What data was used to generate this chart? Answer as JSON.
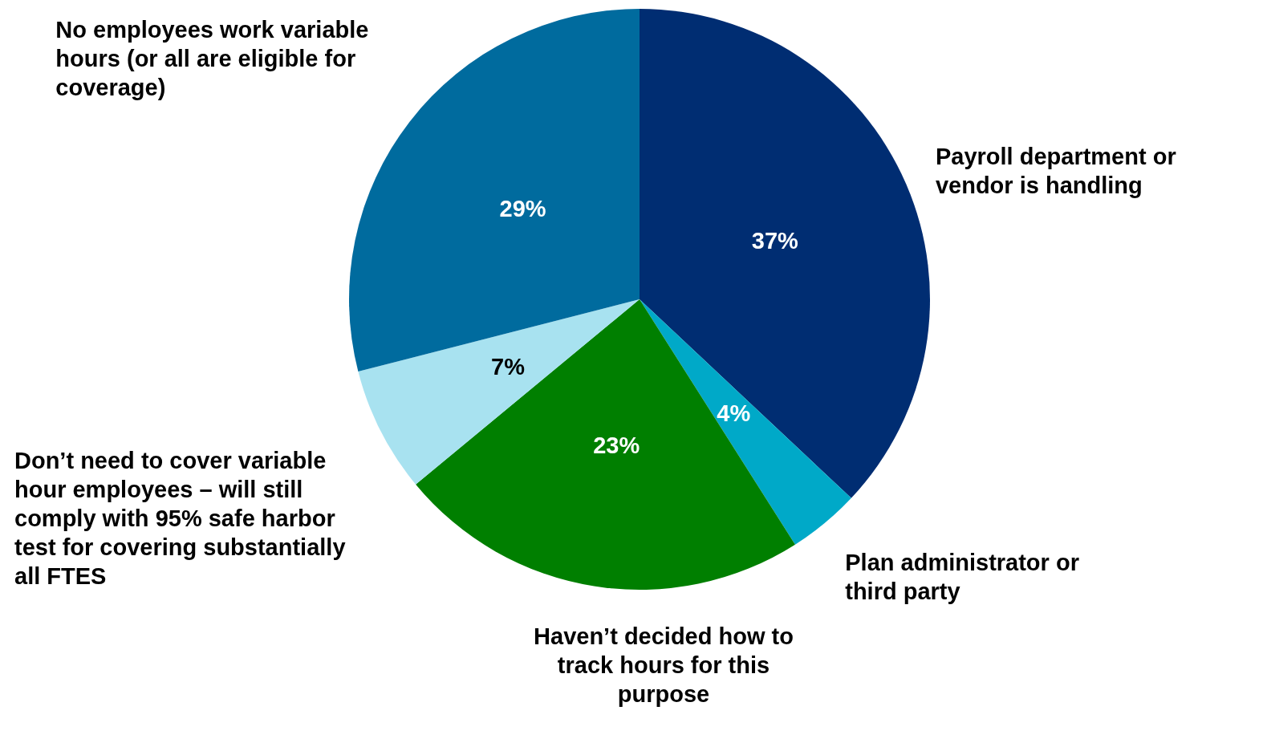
{
  "chart_data": {
    "type": "pie",
    "categories": [
      "Payroll department or vendor is handling",
      "Plan administrator or third party",
      "Haven’t decided how to track hours for this purpose",
      "Don’t need to cover variable hour employees – will still comply with 95% safe harbor test for covering substantially all FTES",
      "No employees work variable hours (or all are eligible for coverage)"
    ],
    "values": [
      37,
      4,
      23,
      7,
      29
    ],
    "colors": [
      "#002d72",
      "#00a9c8",
      "#007f00",
      "#a8e2f0",
      "#006b9e"
    ],
    "value_labels": [
      "37%",
      "4%",
      "23%",
      "7%",
      "29%"
    ],
    "legend": false
  }
}
